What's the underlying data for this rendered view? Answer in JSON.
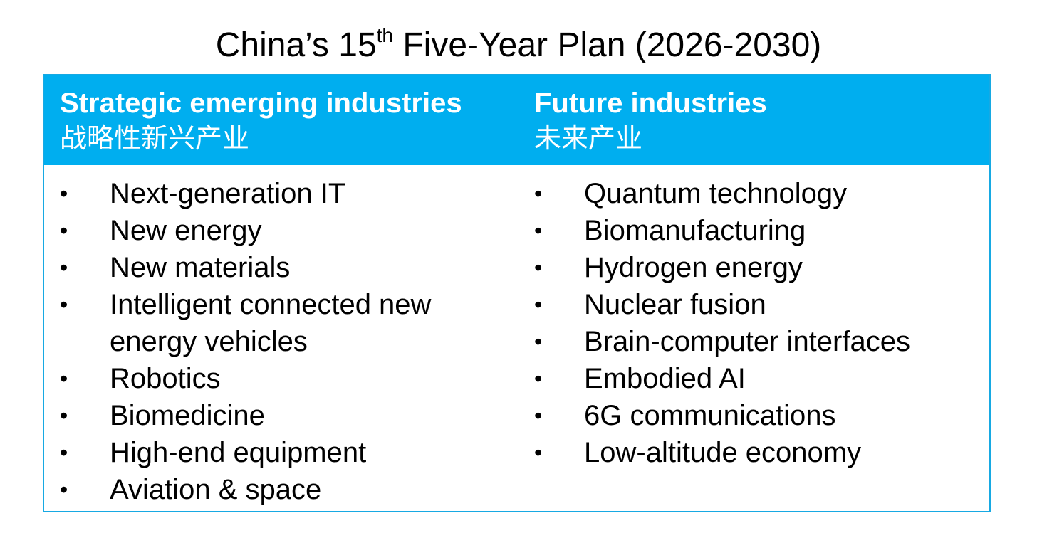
{
  "title": {
    "prefix": "China’s 15",
    "superscript": "th",
    "suffix": " Five-Year Plan (2026-2030)"
  },
  "colors": {
    "header_background": "#00aeef",
    "border": "#17a9e3",
    "header_text": "#ffffff",
    "body_text": "#000000"
  },
  "columns": {
    "left": {
      "header_en": "Strategic emerging industries",
      "header_zh": "战略性新兴产业",
      "items": [
        "Next-generation IT",
        "New energy",
        "New materials",
        "Intelligent connected new energy vehicles",
        "Robotics",
        "Biomedicine",
        "High-end equipment",
        "Aviation & space"
      ]
    },
    "right": {
      "header_en": "Future industries",
      "header_zh": "未来产业",
      "items": [
        "Quantum technology",
        "Biomanufacturing",
        "Hydrogen energy",
        "Nuclear fusion",
        "Brain-computer interfaces",
        "Embodied AI",
        "6G communications",
        "Low-altitude economy"
      ]
    }
  },
  "bullet_symbol": "•"
}
